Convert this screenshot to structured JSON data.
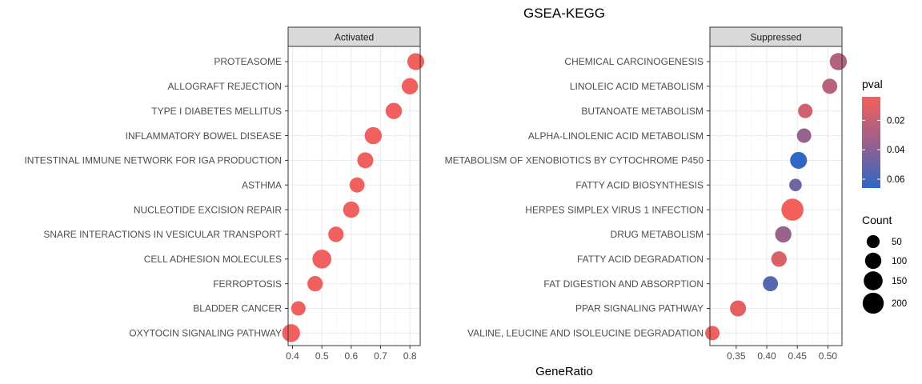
{
  "chart_data": {
    "type": "scatter",
    "title": "GSEA-KEGG",
    "xlabel": "GeneRatio",
    "grid": true,
    "color_legend": {
      "title": "pval",
      "ticks": [
        0.02,
        0.04,
        0.06
      ],
      "tick_labels": [
        "0.02",
        "0.04",
        "0.06"
      ],
      "range": [
        0.004,
        0.066
      ],
      "low_color": "#f2605c",
      "high_color": "#2f67c4"
    },
    "size_legend": {
      "title": "Count",
      "values": [
        50,
        100,
        150,
        200
      ],
      "labels": [
        "50",
        "100",
        "150",
        "200"
      ]
    },
    "panels": [
      {
        "name": "Activated",
        "xlim": [
          0.385,
          0.835
        ],
        "xticks": [
          0.4,
          0.5,
          0.6,
          0.7,
          0.8
        ],
        "xtick_labels": [
          "0.4",
          "0.5",
          "0.6",
          "0.7",
          "0.8"
        ],
        "points": [
          {
            "term": "PROTEASOME",
            "x": 0.82,
            "count": 110,
            "pval": 0.004
          },
          {
            "term": "ALLOGRAFT REJECTION",
            "x": 0.8,
            "count": 100,
            "pval": 0.005
          },
          {
            "term": "TYPE I DIABETES MELLITUS",
            "x": 0.745,
            "count": 100,
            "pval": 0.005
          },
          {
            "term": "INFLAMMATORY BOWEL DISEASE",
            "x": 0.675,
            "count": 115,
            "pval": 0.005
          },
          {
            "term": "INTESTINAL IMMUNE NETWORK FOR IGA PRODUCTION",
            "x": 0.648,
            "count": 95,
            "pval": 0.005
          },
          {
            "term": "ASTHMA",
            "x": 0.62,
            "count": 80,
            "pval": 0.005
          },
          {
            "term": "NUCLEOTIDE EXCISION REPAIR",
            "x": 0.6,
            "count": 100,
            "pval": 0.005
          },
          {
            "term": "SNARE INTERACTIONS IN VESICULAR TRANSPORT",
            "x": 0.548,
            "count": 85,
            "pval": 0.005
          },
          {
            "term": "CELL ADHESION MOLECULES",
            "x": 0.5,
            "count": 150,
            "pval": 0.005
          },
          {
            "term": "FERROPTOSIS",
            "x": 0.477,
            "count": 85,
            "pval": 0.005
          },
          {
            "term": "BLADDER CANCER",
            "x": 0.42,
            "count": 70,
            "pval": 0.005
          },
          {
            "term": "OXYTOCIN SIGNALING PATHWAY",
            "x": 0.395,
            "count": 130,
            "pval": 0.005
          }
        ]
      },
      {
        "name": "Suppressed",
        "xlim": [
          0.307,
          0.523
        ],
        "xticks": [
          0.35,
          0.4,
          0.45,
          0.5
        ],
        "xtick_labels": [
          "0.35",
          "0.40",
          "0.45",
          "0.50"
        ],
        "points": [
          {
            "term": "CHEMICAL CARCINOGENESIS",
            "x": 0.517,
            "count": 115,
            "pval": 0.025
          },
          {
            "term": "LINOLEIC ACID METABOLISM",
            "x": 0.503,
            "count": 80,
            "pval": 0.022
          },
          {
            "term": "BUTANOATE METABOLISM",
            "x": 0.463,
            "count": 70,
            "pval": 0.015
          },
          {
            "term": "ALPHA-LINOLENIC ACID METABOLISM",
            "x": 0.461,
            "count": 70,
            "pval": 0.033
          },
          {
            "term": "METABOLISM OF XENOBIOTICS BY CYTOCHROME P450",
            "x": 0.452,
            "count": 110,
            "pval": 0.066
          },
          {
            "term": "FATTY ACID BIOSYNTHESIS",
            "x": 0.447,
            "count": 45,
            "pval": 0.046
          },
          {
            "term": "HERPES SIMPLEX VIRUS 1 INFECTION",
            "x": 0.442,
            "count": 225,
            "pval": 0.004
          },
          {
            "term": "DRUG METABOLISM",
            "x": 0.427,
            "count": 100,
            "pval": 0.032
          },
          {
            "term": "FATTY ACID DEGRADATION",
            "x": 0.42,
            "count": 85,
            "pval": 0.012
          },
          {
            "term": "FAT DIGESTION AND ABSORPTION",
            "x": 0.406,
            "count": 80,
            "pval": 0.053
          },
          {
            "term": "PPAR SIGNALING PATHWAY",
            "x": 0.353,
            "count": 95,
            "pval": 0.008
          },
          {
            "term": "VALINE, LEUCINE AND ISOLEUCINE DEGRADATION",
            "x": 0.311,
            "count": 70,
            "pval": 0.006
          }
        ]
      }
    ]
  }
}
